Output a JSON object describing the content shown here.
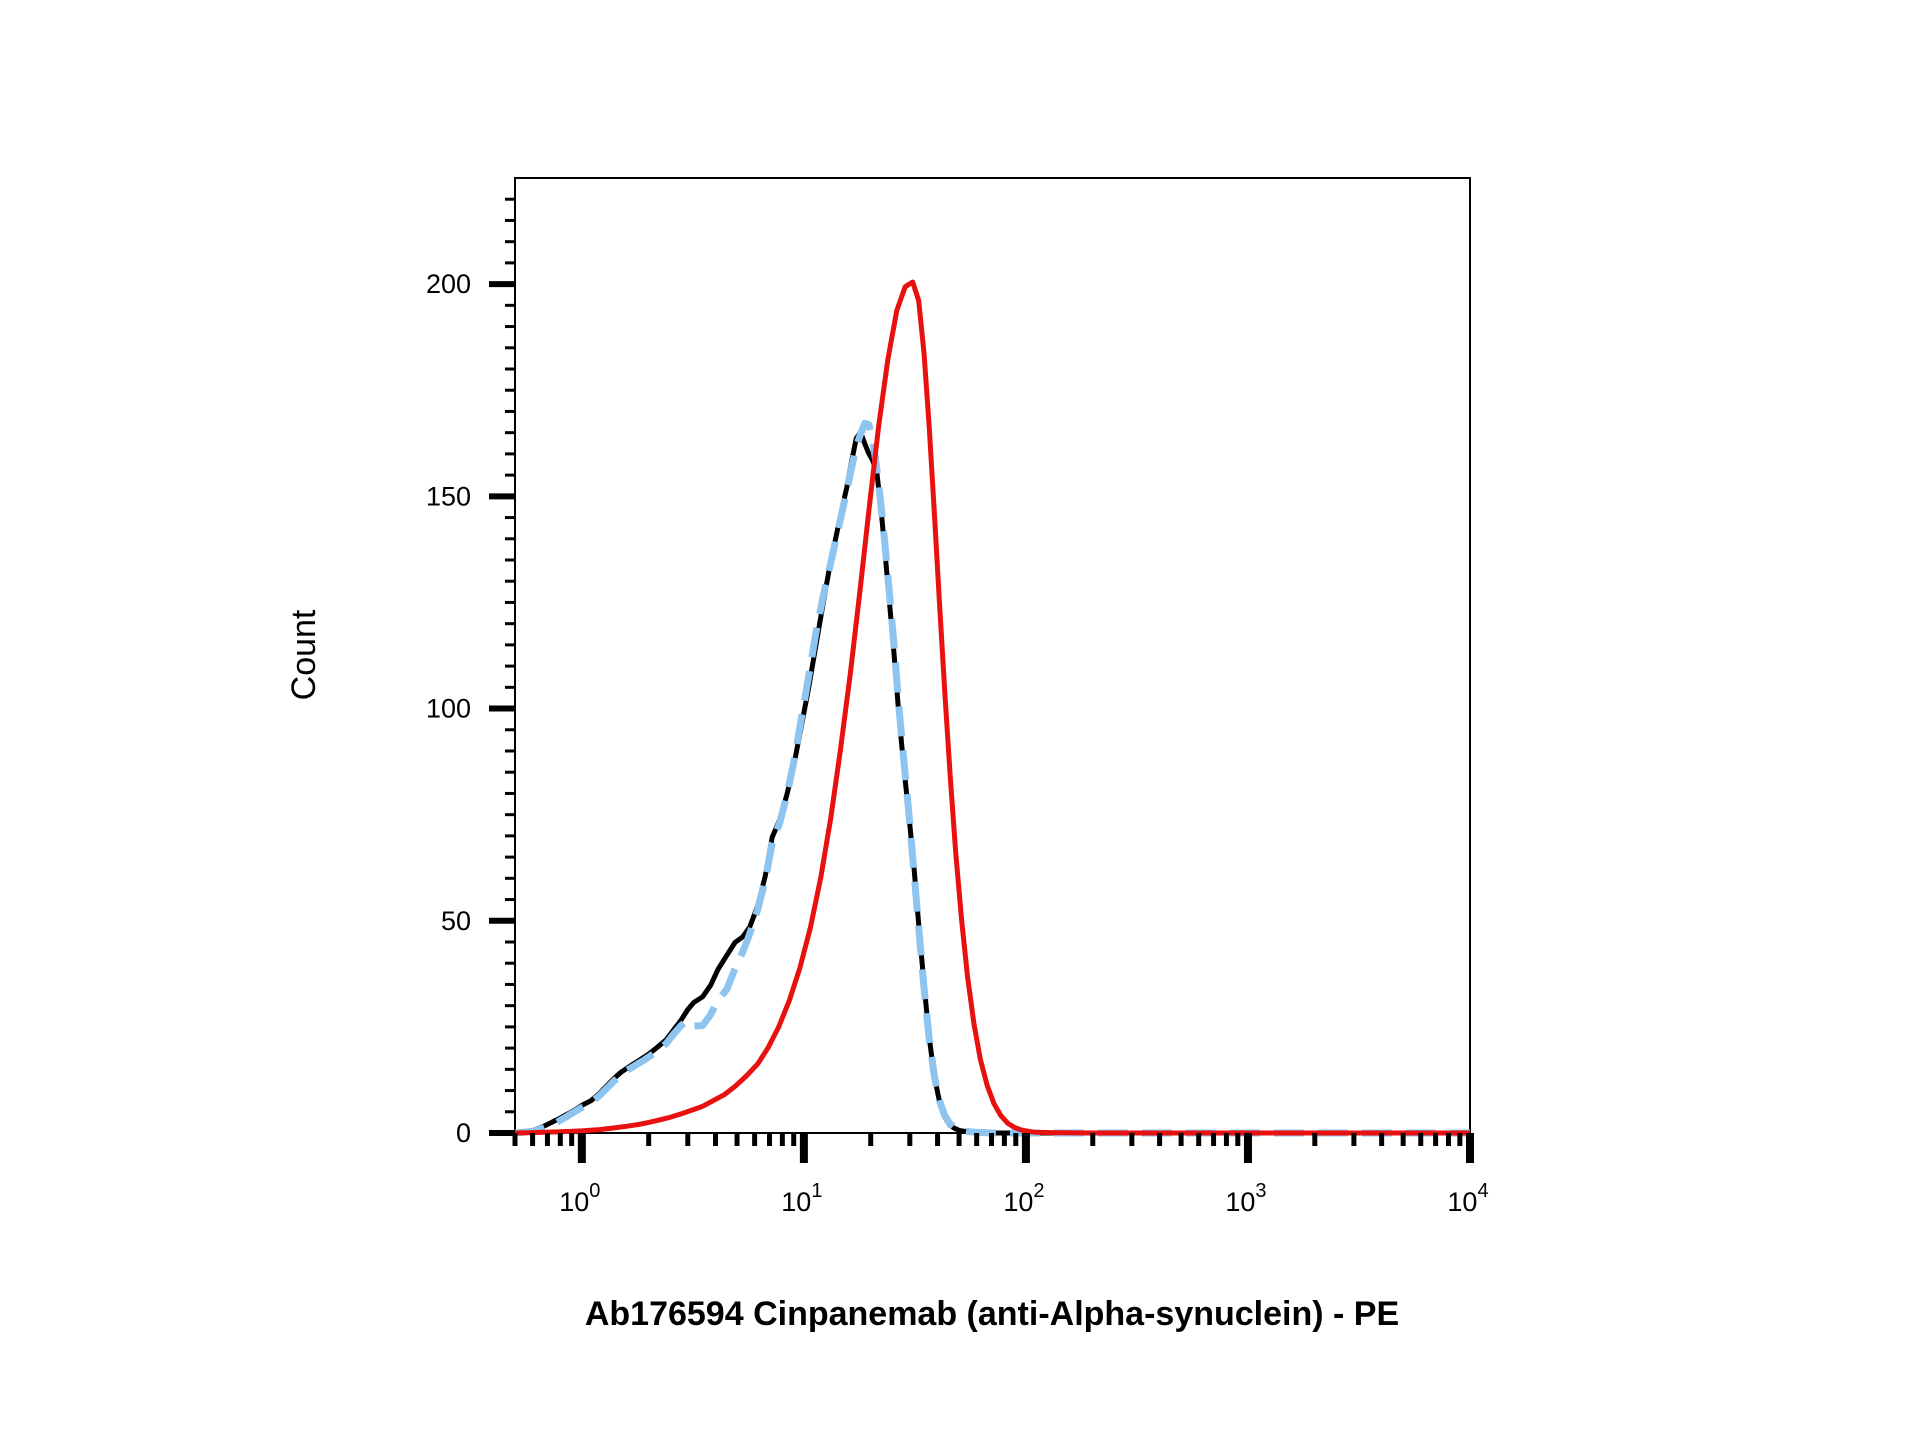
{
  "chart_data": {
    "type": "line",
    "title": "",
    "xlabel": "Ab176594 Cinpanemab (anti-Alpha-synuclein) - PE",
    "ylabel": "Count",
    "x_scale": "log",
    "xlim": [
      0.5,
      10000
    ],
    "ylim": [
      0,
      225
    ],
    "grid": false,
    "x_ticks": [
      {
        "value": 1,
        "base": "10",
        "exp": "0"
      },
      {
        "value": 10,
        "base": "10",
        "exp": "1"
      },
      {
        "value": 100,
        "base": "10",
        "exp": "2"
      },
      {
        "value": 1000,
        "base": "10",
        "exp": "3"
      },
      {
        "value": 10000,
        "base": "10",
        "exp": "4"
      }
    ],
    "y_ticks": [
      "0",
      "50",
      "100",
      "150",
      "200"
    ],
    "series": [
      {
        "color": "#000000",
        "style": "solid",
        "x": [
          0.5,
          0.55,
          0.6,
          0.65,
          0.7,
          0.75,
          0.8,
          0.85,
          0.9,
          0.95,
          1.0,
          1.1,
          1.2,
          1.3,
          1.4,
          1.5,
          1.6,
          1.7,
          1.8,
          1.9,
          2.0,
          2.2,
          2.4,
          2.6,
          2.8,
          3.0,
          3.2,
          3.5,
          3.8,
          4.1,
          4.5,
          4.9,
          5.3,
          5.7,
          6.2,
          6.7,
          7.2,
          7.8,
          8.4,
          9.0,
          9.7,
          10.5,
          11.3,
          12.2,
          13.1,
          14.0,
          14.8,
          15.6,
          16.4,
          17.2,
          18.0,
          18.8,
          19.6,
          20.4,
          21.3,
          22.2,
          23.2,
          24.3,
          25.5,
          26.8,
          28.2,
          29.7,
          31.3,
          33.0,
          34.8,
          36.7,
          38.7,
          40.8,
          43.0,
          45.3,
          47.7,
          50.2,
          52.9,
          55.7,
          58.7,
          61.8,
          65.0,
          70,
          80,
          100,
          200,
          500,
          1000,
          3000,
          10000
        ],
        "y": [
          0,
          0.3,
          0.6,
          1.2,
          2,
          2.8,
          3.5,
          4.3,
          5,
          5.7,
          6.5,
          7.6,
          9.3,
          11.2,
          12.9,
          14.3,
          15.3,
          16.2,
          17.0,
          17.8,
          18.6,
          20.3,
          22.0,
          24.4,
          26.6,
          29.1,
          30.8,
          32.1,
          34.8,
          38.5,
          41.9,
          44.9,
          46.2,
          48.5,
          53.6,
          60.6,
          69.7,
          73.9,
          79.9,
          86.5,
          95.3,
          104.8,
          114.6,
          124.7,
          133.7,
          140.8,
          146.8,
          152.1,
          158.2,
          163.6,
          165.1,
          162.4,
          160.1,
          158.5,
          155.6,
          147.6,
          136.8,
          124.9,
          112.7,
          98.5,
          86.0,
          74.8,
          62.8,
          48.3,
          34.8,
          22.3,
          13.3,
          7.4,
          3.8,
          1.9,
          1.1,
          0.6,
          0.4,
          0.3,
          0.2,
          0.1,
          0.1,
          0,
          0,
          0,
          0,
          0,
          0,
          0,
          0
        ]
      },
      {
        "color": "#8ec4f0",
        "style": "dashed",
        "x": [
          0.5,
          0.55,
          0.6,
          0.65,
          0.7,
          0.75,
          0.8,
          0.85,
          0.9,
          0.95,
          1.0,
          1.1,
          1.2,
          1.3,
          1.4,
          1.5,
          1.6,
          1.7,
          1.8,
          1.9,
          2.0,
          2.2,
          2.4,
          2.6,
          2.8,
          3.0,
          3.2,
          3.5,
          3.8,
          4.1,
          4.5,
          4.9,
          5.3,
          5.7,
          6.2,
          6.7,
          7.2,
          7.8,
          8.4,
          9.0,
          9.7,
          10.5,
          11.3,
          12.2,
          13.1,
          14.0,
          14.8,
          15.6,
          16.4,
          17.2,
          18.0,
          18.8,
          19.6,
          20.4,
          21.3,
          22.2,
          23.2,
          24.3,
          25.5,
          26.8,
          28.2,
          29.7,
          31.3,
          33.0,
          34.8,
          36.7,
          38.7,
          40.8,
          43.0,
          45.3,
          47.7,
          50.2,
          52.9,
          55.7,
          58.7,
          61.8,
          65.0,
          70,
          80,
          100,
          200,
          500,
          1000,
          3000,
          10000
        ],
        "y": [
          0,
          0.2,
          0.4,
          0.9,
          1.5,
          2.2,
          3.0,
          3.8,
          4.6,
          5.3,
          6.0,
          7.2,
          8.8,
          10.6,
          12.3,
          13.7,
          14.8,
          15.6,
          16.4,
          17.1,
          17.9,
          19.4,
          21.1,
          23.4,
          25.3,
          26.6,
          25.2,
          25.3,
          27.9,
          31.2,
          33.9,
          38.8,
          42.6,
          46.9,
          52.7,
          59.7,
          68.3,
          73.2,
          79.8,
          87.3,
          97.1,
          107.5,
          117.6,
          126.4,
          133.5,
          140.2,
          145.9,
          151.3,
          156.8,
          161.6,
          164.7,
          167.2,
          166.9,
          163.6,
          156.5,
          148.3,
          138.6,
          127.0,
          114.8,
          100.4,
          87.6,
          75.2,
          61.7,
          47.6,
          34.0,
          21.9,
          13.3,
          7.6,
          4.2,
          2.3,
          1.3,
          0.8,
          0.5,
          0.3,
          0.2,
          0.1,
          0.1,
          0,
          0,
          0,
          0,
          0,
          0,
          0,
          0
        ]
      },
      {
        "color": "#e8110f",
        "style": "solid",
        "x": [
          0.5,
          0.6,
          0.8,
          1.0,
          1.2,
          1.4,
          1.6,
          1.8,
          2.0,
          2.2,
          2.5,
          2.8,
          3.1,
          3.5,
          3.9,
          4.4,
          4.9,
          5.5,
          6.2,
          6.9,
          7.7,
          8.6,
          9.6,
          10.7,
          11.9,
          13.2,
          14.6,
          16.2,
          17.9,
          19.7,
          21.7,
          23.9,
          26.2,
          28.6,
          30.9,
          32.9,
          34.8,
          36.7,
          38.7,
          40.8,
          43.1,
          45.6,
          48.3,
          51.3,
          54.6,
          58.3,
          62.4,
          66.9,
          71.8,
          77.1,
          82.8,
          88.9,
          95.4,
          102.5,
          110,
          130,
          200,
          500,
          1000,
          3000,
          10000
        ],
        "y": [
          0,
          0.1,
          0.3,
          0.5,
          0.8,
          1.2,
          1.6,
          2.0,
          2.5,
          3.0,
          3.7,
          4.5,
          5.3,
          6.3,
          7.6,
          9.1,
          11.0,
          13.4,
          16.3,
          20.1,
          25.0,
          31.2,
          38.9,
          48.4,
          60.1,
          74.1,
          90.2,
          108.4,
          127.8,
          147.5,
          166.5,
          182.3,
          193.8,
          199.4,
          200.5,
          196.1,
          183.5,
          166.0,
          145.9,
          124.8,
          103.8,
          84.1,
          66.1,
          50.2,
          36.7,
          25.8,
          17.3,
          11.2,
          6.9,
          4.1,
          2.3,
          1.3,
          0.7,
          0.4,
          0.2,
          0.1,
          0,
          0,
          0,
          0,
          0
        ]
      }
    ]
  }
}
